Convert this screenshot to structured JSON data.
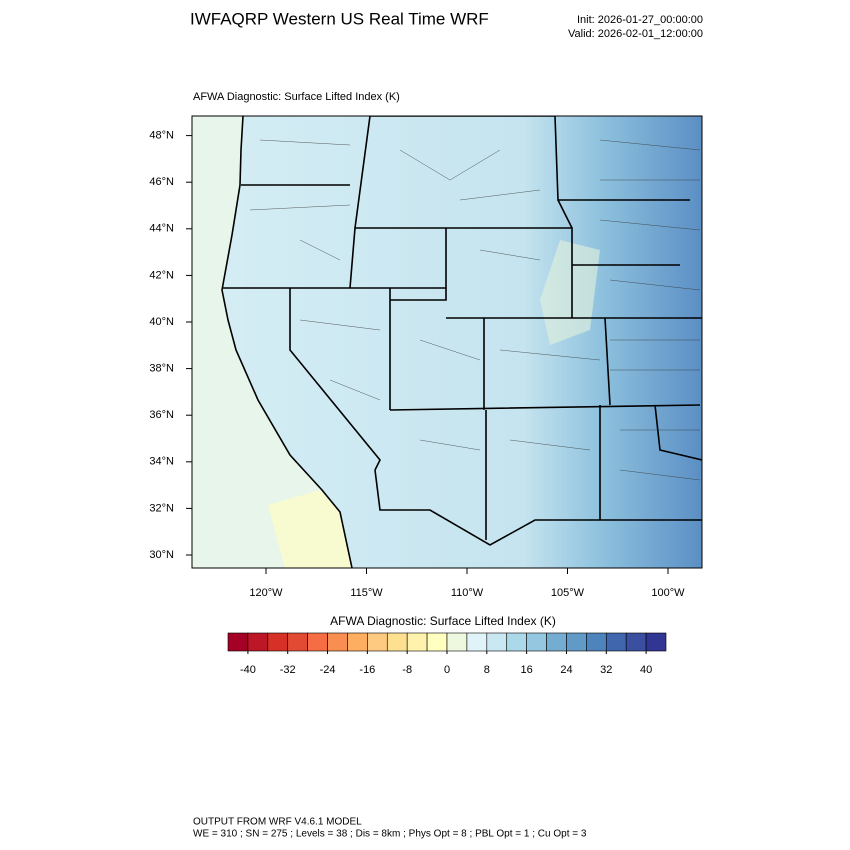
{
  "header": {
    "title": "IWFAQRP Western US Real Time WRF",
    "init": "Init: 2026-01-27_00:00:00",
    "valid": "Valid: 2026-02-01_12:00:00"
  },
  "map": {
    "title": "AFWA Diagnostic: Surface Lifted Index   (K)",
    "lat_ticks": [
      {
        "value": 48,
        "label": "48°N"
      },
      {
        "value": 46,
        "label": "46°N"
      },
      {
        "value": 44,
        "label": "44°N"
      },
      {
        "value": 42,
        "label": "42°N"
      },
      {
        "value": 40,
        "label": "40°N"
      },
      {
        "value": 38,
        "label": "38°N"
      },
      {
        "value": 36,
        "label": "36°N"
      },
      {
        "value": 34,
        "label": "34°N"
      },
      {
        "value": 32,
        "label": "32°N"
      },
      {
        "value": 30,
        "label": "30°N"
      }
    ],
    "lon_ticks": [
      {
        "value": -120,
        "label": "120°W"
      },
      {
        "value": -115,
        "label": "115°W"
      },
      {
        "value": -110,
        "label": "110°W"
      },
      {
        "value": -105,
        "label": "105°W"
      },
      {
        "value": -100,
        "label": "100°W"
      }
    ]
  },
  "colorbar": {
    "title": "AFWA Diagnostic: Surface Lifted Index  (K)",
    "ticks": [
      -40,
      -32,
      -24,
      -16,
      -8,
      0,
      8,
      16,
      24,
      32,
      40
    ],
    "colors": [
      "#a50026",
      "#bd1727",
      "#d73027",
      "#e34a33",
      "#f46d43",
      "#f98e52",
      "#fdae61",
      "#fec980",
      "#fee090",
      "#fff2ad",
      "#ffffbf",
      "#edf8df",
      "#e0f3f8",
      "#c9e8f1",
      "#abd9e9",
      "#95c8e0",
      "#74add1",
      "#6199c7",
      "#4e84bc",
      "#4067ae",
      "#3a4fa0",
      "#313695"
    ]
  },
  "footer": {
    "line1": "OUTPUT FROM WRF V4.6.1 MODEL",
    "line2": "WE = 310 ; SN = 275 ; Levels = 38 ; Dis = 8km ; Phys Opt = 8 ; PBL Opt = 1 ; Cu Opt = 3"
  }
}
